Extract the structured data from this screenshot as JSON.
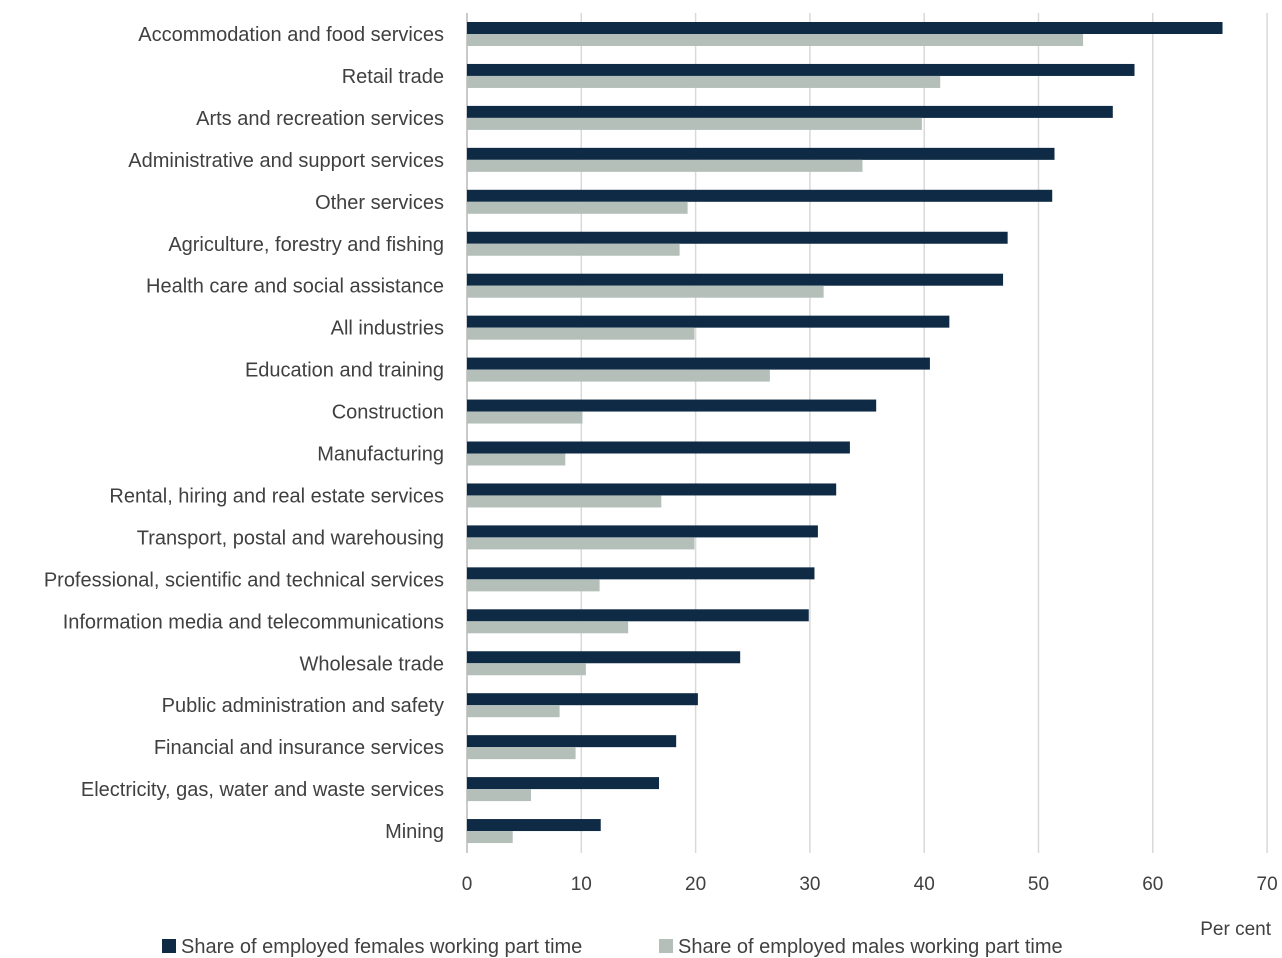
{
  "chart_data": {
    "type": "bar",
    "orientation": "horizontal",
    "title": "",
    "xlabel": "Per cent",
    "ylabel": "",
    "xlim": [
      0,
      70
    ],
    "xticks": [
      0,
      10,
      20,
      30,
      40,
      50,
      60,
      70
    ],
    "grid": "vertical",
    "legend_position": "bottom",
    "categories": [
      "Accommodation and food services",
      "Retail trade",
      "Arts and recreation services",
      "Administrative and support services",
      "Other services",
      "Agriculture, forestry and fishing",
      "Health care and social assistance",
      "All industries",
      "Education and training",
      "Construction",
      "Manufacturing",
      "Rental, hiring and real estate services",
      "Transport, postal and warehousing",
      "Professional, scientific and technical services",
      "Information media and telecommunications",
      "Wholesale trade",
      "Public administration and safety",
      "Financial and insurance services",
      "Electricity, gas, water and waste services",
      "Mining"
    ],
    "series": [
      {
        "name": "Share of employed females working part time",
        "color": "#0f2a44",
        "values": [
          66.1,
          58.4,
          56.5,
          51.4,
          51.2,
          47.3,
          46.9,
          42.2,
          40.5,
          35.8,
          33.5,
          32.3,
          30.7,
          30.4,
          29.9,
          23.9,
          20.2,
          18.3,
          16.8,
          11.7
        ]
      },
      {
        "name": "Share of employed males working part time",
        "color": "#b4bfba",
        "values": [
          53.9,
          41.4,
          39.8,
          34.6,
          19.3,
          18.6,
          31.2,
          19.9,
          26.5,
          10.1,
          8.6,
          17.0,
          19.9,
          11.6,
          14.1,
          10.4,
          8.1,
          9.5,
          5.6,
          4.0
        ]
      }
    ]
  }
}
